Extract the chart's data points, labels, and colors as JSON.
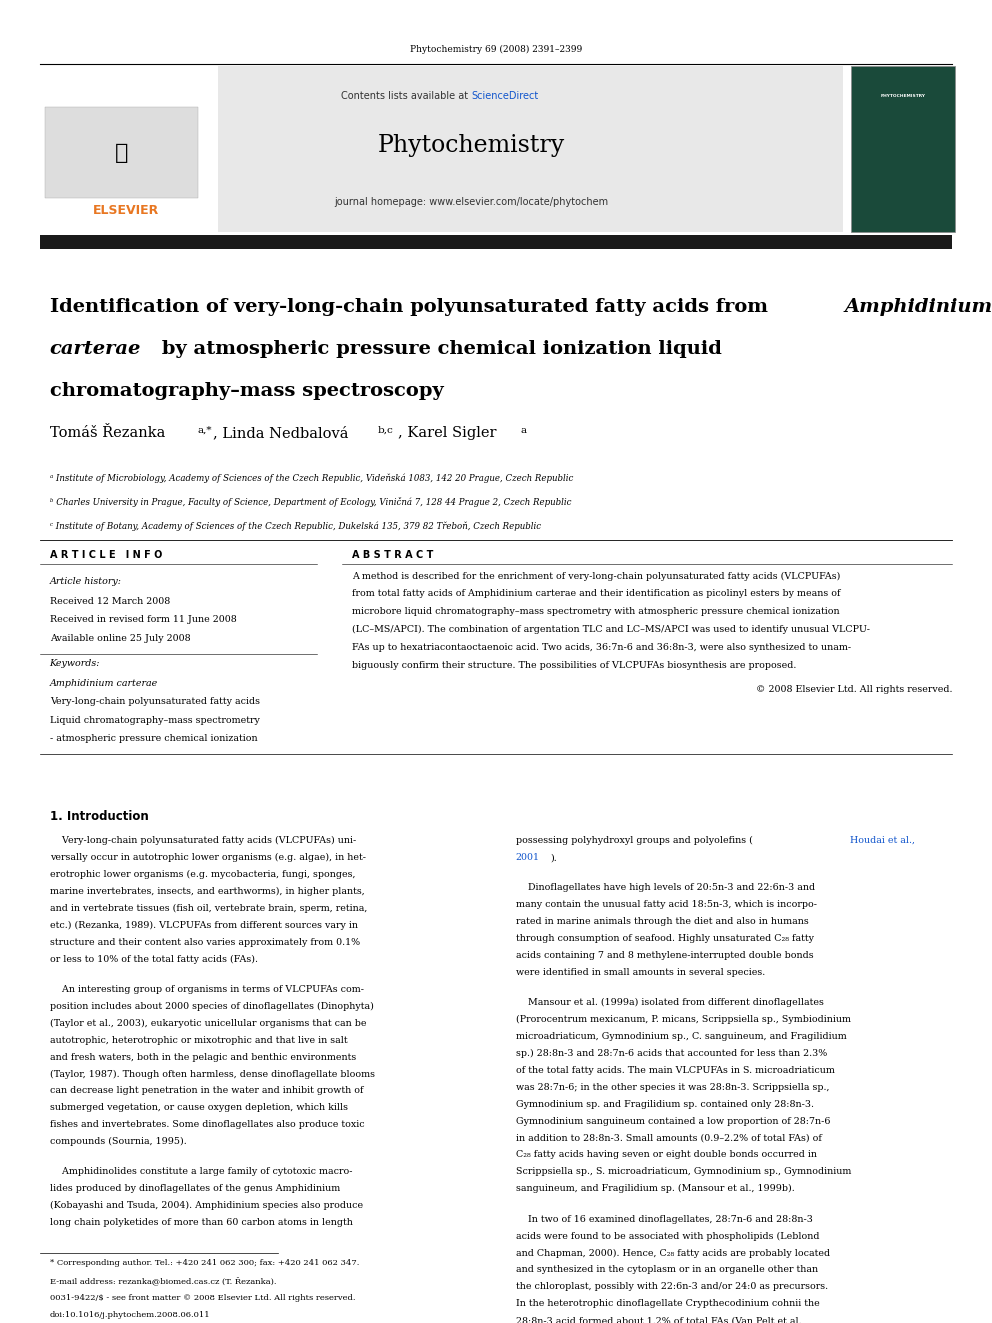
{
  "page_width": 9.92,
  "page_height": 13.23,
  "bg_color": "#ffffff",
  "header_citation": "Phytochemistry 69 (2008) 2391–2399",
  "journal_name": "Phytochemistry",
  "journal_url": "Contents lists available at ScienceDirect",
  "journal_homepage": "journal homepage: www.elsevier.com/locate/phytochem",
  "header_bg": "#e8e8e8",
  "dark_bar_color": "#1a1a1a",
  "orange_color": "#e87722",
  "blue_link_color": "#1155cc",
  "article_info_header": "ARTICLE INFO",
  "abstract_header": "ABSTRACT",
  "article_history_label": "Article history:",
  "received": "Received 12 March 2008",
  "revised": "Received in revised form 11 June 2008",
  "available": "Available online 25 July 2008",
  "keywords_label": "Keywords:",
  "keyword1": "Amphidinium carterae",
  "keyword2": "Very-long-chain polyunsaturated fatty acids",
  "keyword3": "Liquid chromatography–mass spectrometry",
  "keyword4": "- atmospheric pressure chemical ionization",
  "copyright": "© 2008 Elsevier Ltd. All rights reserved.",
  "footnote1": "* Corresponding author. Tel.: +420 241 062 300; fax: +420 241 062 347.",
  "footnote2": "E-mail address: rezanka@biomed.cas.cz (T. Řezanka).",
  "footnote3": "0031-9422/$ - see front matter © 2008 Elsevier Ltd. All rights reserved.",
  "footnote4": "doi:10.1016/j.phytochem.2008.06.011"
}
